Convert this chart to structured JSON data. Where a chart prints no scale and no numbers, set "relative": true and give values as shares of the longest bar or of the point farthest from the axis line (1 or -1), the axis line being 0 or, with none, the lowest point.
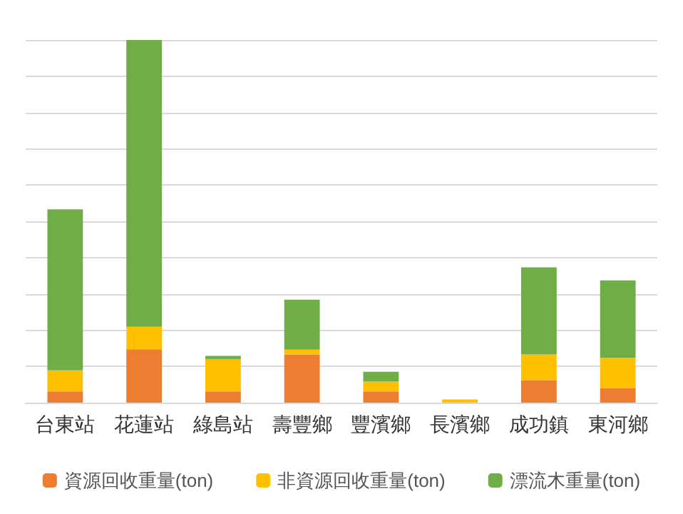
{
  "chart_data": {
    "type": "bar",
    "stacked": true,
    "relative": true,
    "grid": "y",
    "legend": "bottom",
    "categories": [
      "台東站",
      "花蓮站",
      "綠島站",
      "壽豐鄉",
      "豐濱鄉",
      "長濱鄉",
      "成功鎮",
      "東河鄉"
    ],
    "series": [
      {
        "name": "資源回收重量(ton)",
        "color": "#ed7d31",
        "values": [
          0.031,
          0.147,
          0.031,
          0.133,
          0.031,
          0,
          0.062,
          0.04
        ]
      },
      {
        "name": "非資源回收重量(ton)",
        "color": "#ffc000",
        "values": [
          0.058,
          0.062,
          0.089,
          0.013,
          0.027,
          0.009,
          0.071,
          0.084
        ]
      },
      {
        "name": "漂流木重量(ton)",
        "color": "#70ad47",
        "values": [
          0.444,
          0.791,
          0.009,
          0.138,
          0.027,
          0,
          0.24,
          0.213
        ]
      }
    ]
  }
}
